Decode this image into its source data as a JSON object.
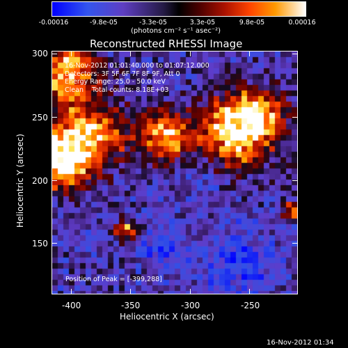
{
  "colorbar": {
    "ticks": [
      "-0.00016",
      "-9.8e-05",
      "-3.3e-05",
      "3.3e-05",
      "9.8e-05",
      "0.00016"
    ],
    "unit": "(photons cm⁻² s⁻¹ asec⁻²)"
  },
  "title": "Reconstructed RHESSI Image",
  "info": {
    "line1": "16-Nov-2012 01:01:40.000 to 01:07:12.000",
    "line2": "Detectors: 3F 5F 6F 7F 8F 9F, Att 0",
    "line3": "Energy Range: 25.0 - 50.0 keV",
    "line4": "Clean    Total counts: 8.18E+03"
  },
  "peak": "Position of Peak = [-399,288]",
  "axes": {
    "xlabel": "Heliocentric X (arcsec)",
    "ylabel": "Heliocentric Y (arcsec)",
    "xticks": [
      "-400",
      "-350",
      "-300",
      "-250"
    ],
    "yticks": [
      "300",
      "250",
      "200",
      "150"
    ]
  },
  "timestamp": "16-Nov-2012 01:34",
  "image": {
    "colormap": "blue-purple-black-red-yellow-white"
  }
}
